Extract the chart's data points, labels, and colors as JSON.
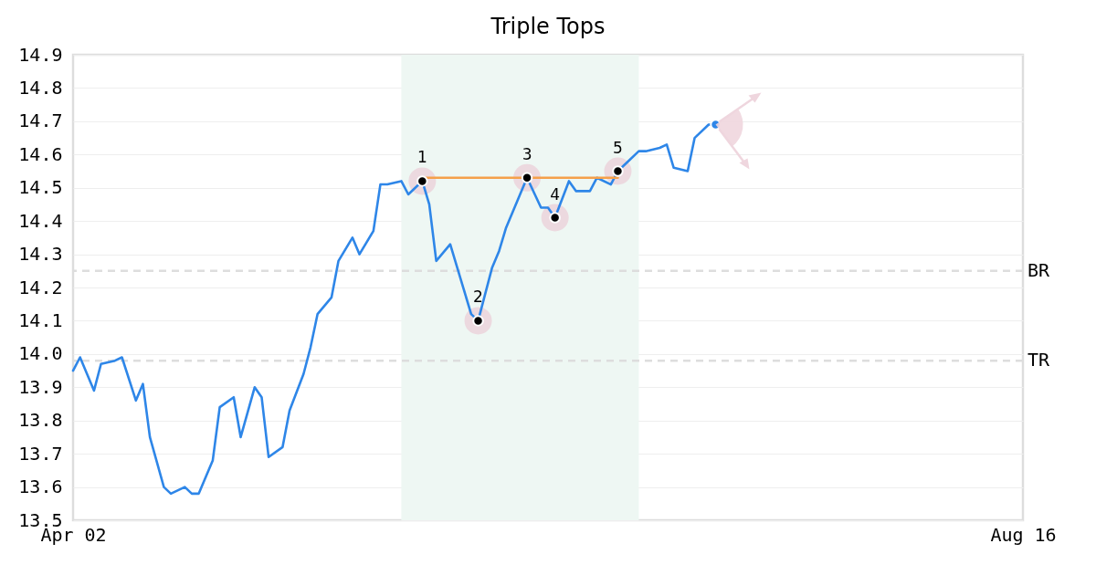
{
  "chart_data": {
    "type": "line",
    "title": "Triple Tops",
    "x": [
      "--04-02",
      "--04-03",
      "--04-05",
      "--04-06",
      "--04-08",
      "--04-09",
      "--04-11",
      "--04-12",
      "--04-13",
      "--04-15",
      "--04-16",
      "--04-18",
      "--04-19",
      "--04-20",
      "--04-22",
      "--04-23",
      "--04-25",
      "--04-26",
      "--04-28",
      "--04-29",
      "--04-30",
      "--05-02",
      "--05-03",
      "--05-05",
      "--05-06",
      "--05-07",
      "--05-09",
      "--05-10",
      "--05-12",
      "--05-13",
      "--05-15",
      "--05-16",
      "--05-17",
      "--05-19",
      "--05-20",
      "--05-22",
      "--05-23",
      "--05-24",
      "--05-26",
      "--05-27",
      "--05-29",
      "--05-30",
      "--06-01",
      "--06-02",
      "--06-03",
      "--06-05",
      "--06-06",
      "--06-08",
      "--06-09",
      "--06-10",
      "--06-12",
      "--06-13",
      "--06-15",
      "--06-16",
      "--06-18",
      "--06-19",
      "--06-20",
      "--06-22",
      "--06-23",
      "--06-25",
      "--06-26",
      "--06-27",
      "--06-29",
      "--06-30",
      "--07-02",
      "--07-03"
    ],
    "series": [
      {
        "color": "#2e86e8",
        "values": [
          13.95,
          13.99,
          13.89,
          13.97,
          13.98,
          13.99,
          13.86,
          13.91,
          13.75,
          13.6,
          13.58,
          13.6,
          13.58,
          13.58,
          13.68,
          13.84,
          13.87,
          13.75,
          13.9,
          13.87,
          13.69,
          13.72,
          13.83,
          13.94,
          14.02,
          14.12,
          14.17,
          14.28,
          14.35,
          14.3,
          14.37,
          14.51,
          14.51,
          14.52,
          14.48,
          14.52,
          14.45,
          14.28,
          14.33,
          14.26,
          14.12,
          14.1,
          14.26,
          14.31,
          14.38,
          14.48,
          14.53,
          14.44,
          14.44,
          14.41,
          14.52,
          14.49,
          14.49,
          14.53,
          14.51,
          14.55,
          14.57,
          14.61,
          14.61,
          14.62,
          14.63,
          14.56,
          14.55,
          14.65,
          14.69,
          14.69
        ]
      },
      {
        "type": "line",
        "color": "#f5a04a",
        "x": [
          "--05-22",
          "--06-19"
        ],
        "values": [
          14.53,
          14.53
        ]
      },
      {
        "type": "scatter",
        "color": "#000000",
        "x": [
          "--05-22",
          "--05-30",
          "--06-06",
          "--06-10",
          "--06-19"
        ],
        "values": [
          14.52,
          14.1,
          14.53,
          14.41,
          14.55
        ]
      },
      {
        "type": "scatter",
        "color": "#2e86e8",
        "x": [
          "--07-03"
        ],
        "values": [
          14.69
        ]
      }
    ],
    "xlim": [
      "--04-02",
      "--08-16"
    ],
    "xticks": [
      {
        "value": "--04-02",
        "label": "Apr 02"
      },
      {
        "value": "--08-16",
        "label": "Aug 16"
      }
    ],
    "ylim": [
      13.5,
      14.9
    ],
    "yticks": [
      13.5,
      13.6,
      13.7,
      13.8,
      13.9,
      {
        "value": 14,
        "label": "14.0"
      },
      14.1,
      14.2,
      14.3,
      14.4,
      14.5,
      14.6,
      14.7,
      14.8,
      14.9
    ],
    "grid": "y",
    "ref_lines": [
      {
        "axis": "y",
        "value": 14.25,
        "label": "BR",
        "color": "#dddddd",
        "line_style": "dashed"
      },
      {
        "axis": "y",
        "value": 13.98,
        "label": "TR",
        "color": "#dddddd",
        "line_style": "dashed"
      }
    ],
    "bands": [
      {
        "axis": "x",
        "from": "--05-19",
        "to": "--06-22",
        "color": "#eef7f3"
      }
    ],
    "annotations": [
      {
        "text": "1",
        "x": "--05-22",
        "y": 14.52
      },
      {
        "text": "2",
        "x": "--05-30",
        "y": 14.1
      },
      {
        "text": "3",
        "x": "--06-06",
        "y": 14.53
      },
      {
        "text": "4",
        "x": "--06-10",
        "y": 14.41
      },
      {
        "text": "5",
        "x": "--06-19",
        "y": 14.55
      }
    ]
  }
}
